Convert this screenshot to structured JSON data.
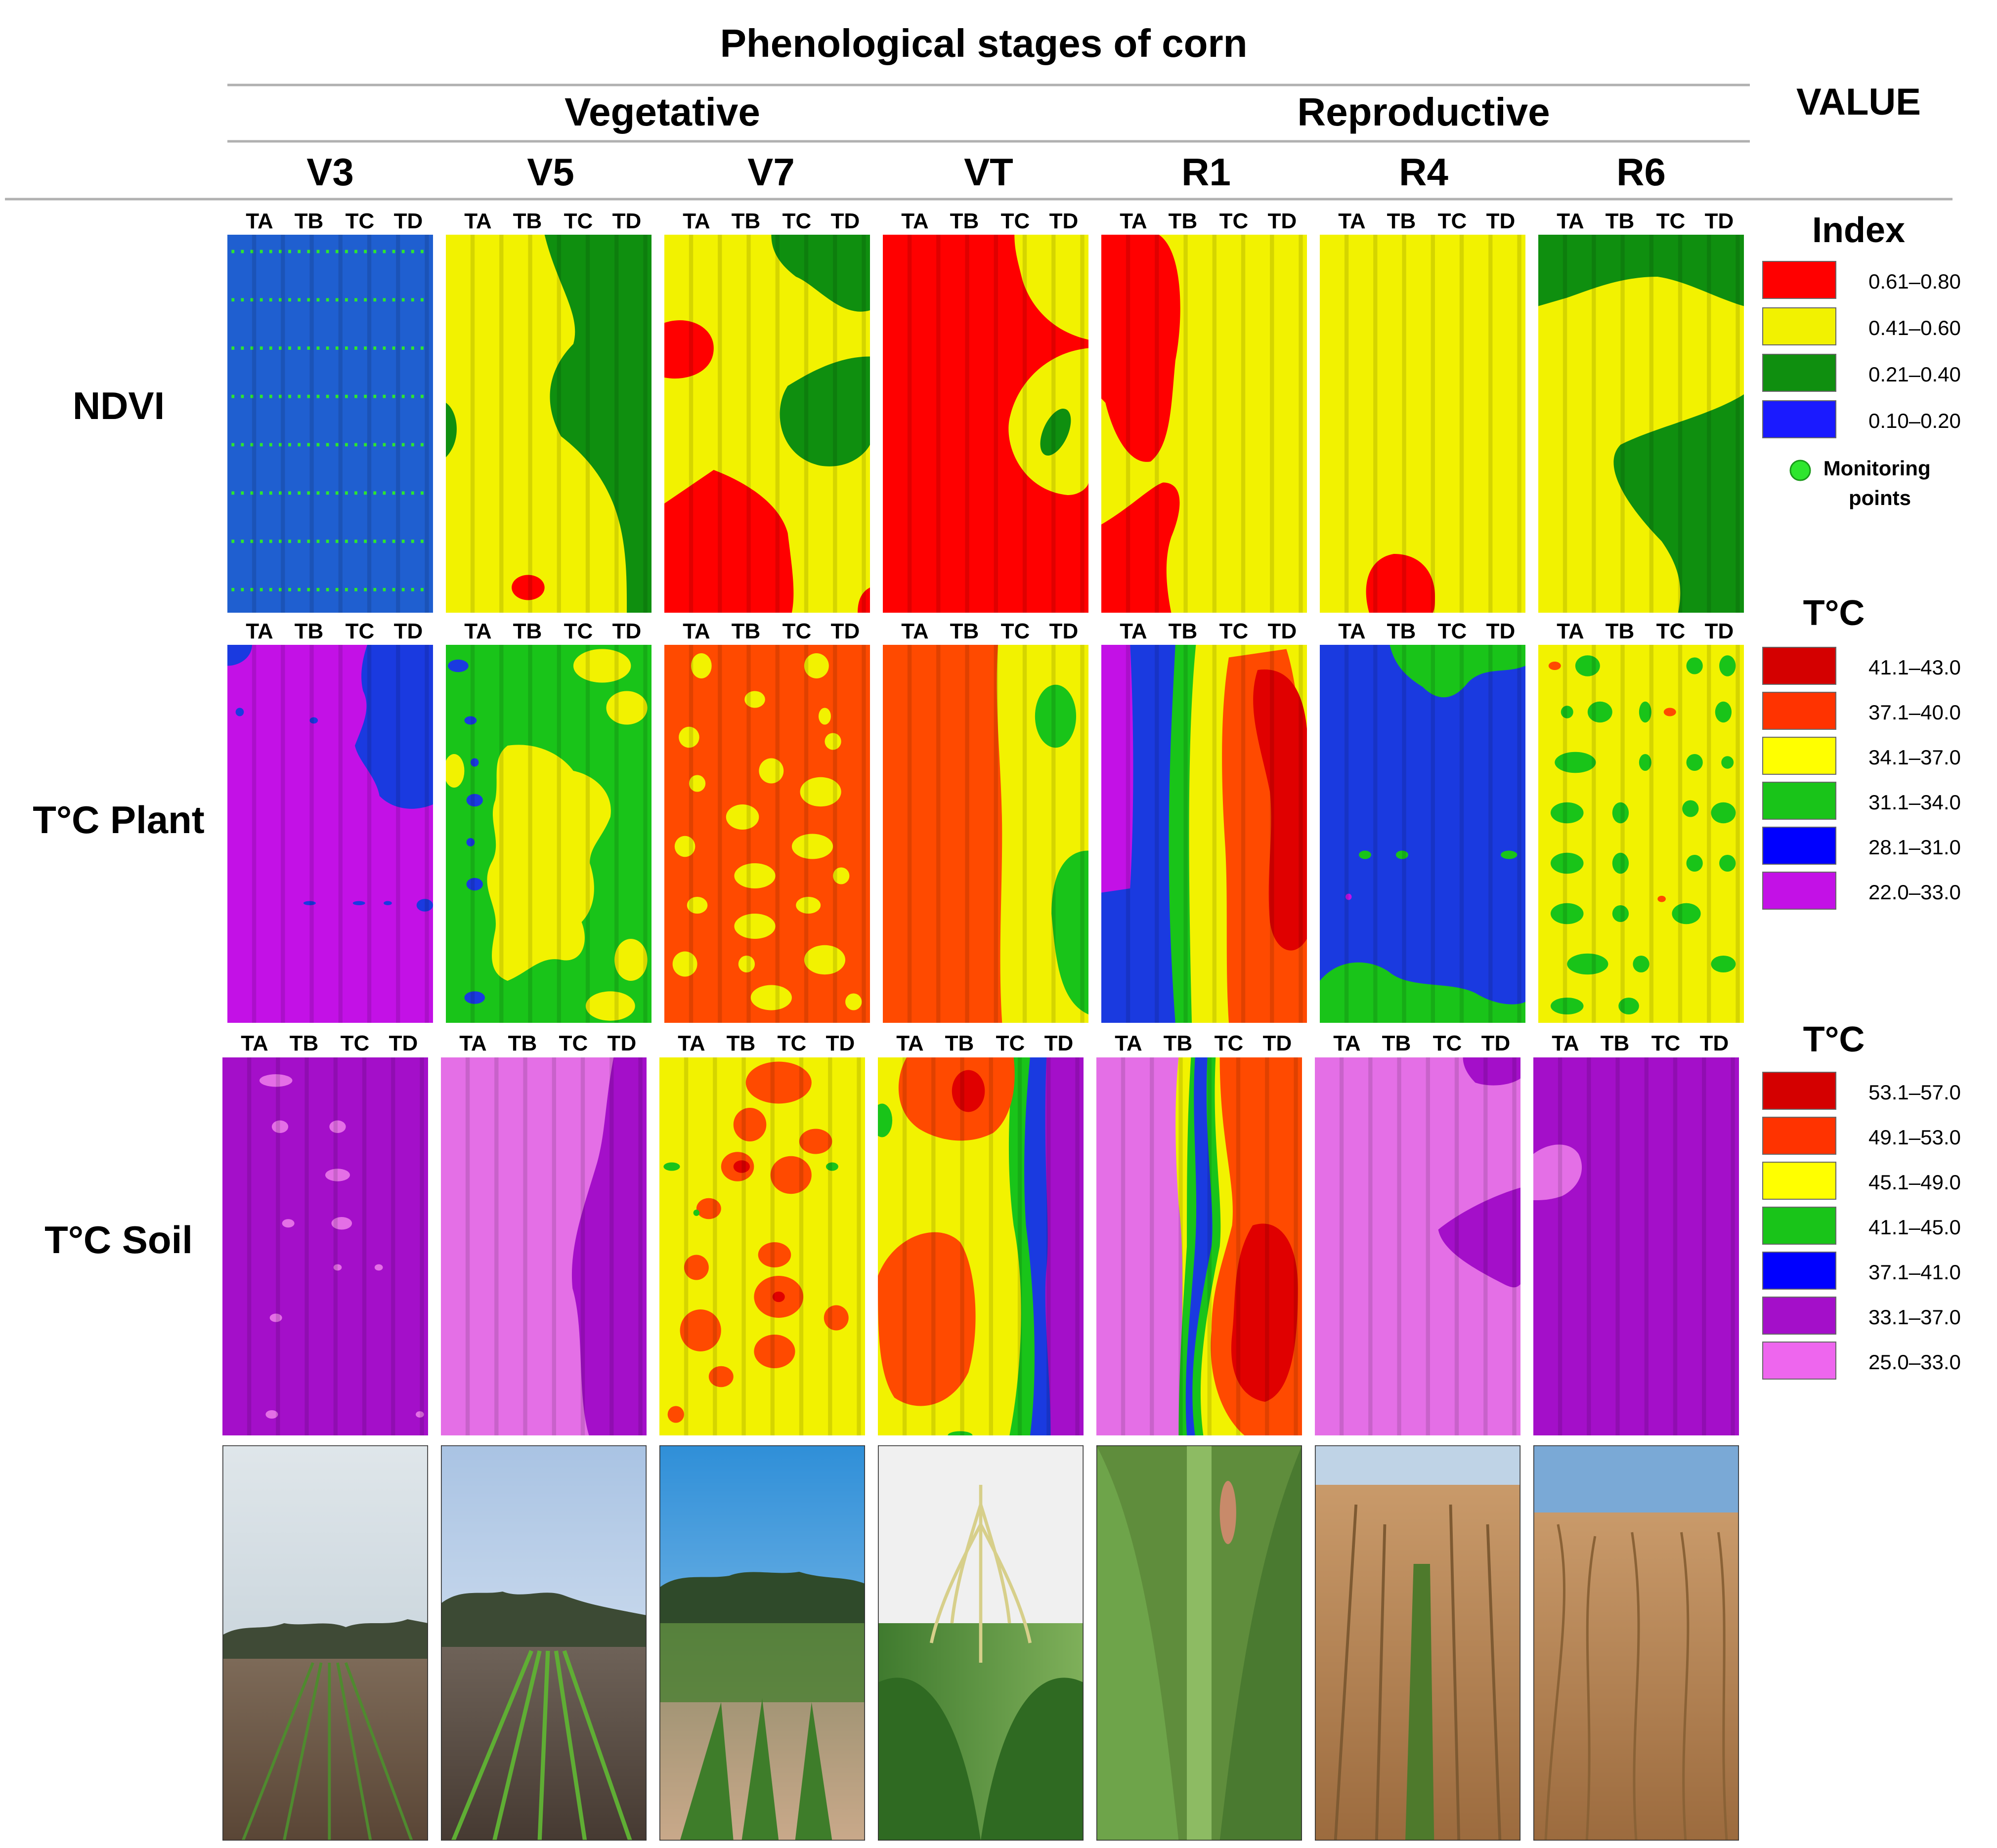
{
  "title": "Phenological stages of corn",
  "groups": [
    "Vegetative",
    "Reproductive"
  ],
  "value_header": "VALUE",
  "stages": [
    "V3",
    "V5",
    "V7",
    "VT",
    "R1",
    "R4",
    "R6"
  ],
  "treatments": [
    "TA",
    "TB",
    "TC",
    "TD"
  ],
  "row_labels": [
    "NDVI",
    "T°C Plant",
    "T°C Soil"
  ],
  "colors": {
    "red": "#ff0000",
    "darkred": "#e00000",
    "orange": "#ff4a00",
    "yellow": "#f2f200",
    "green": "#0f8f0f",
    "lime": "#19c419",
    "blue": "#1a3ae0",
    "ndviblue": "#1f5fd0",
    "violet": "#c311e6",
    "purple": "#a40fc9",
    "pink": "#e46fe6",
    "pinkmark": "#cf5ad3",
    "dot": "#2ee62e"
  },
  "legends": [
    {
      "title": "Index",
      "items": [
        {
          "label": "0.61–0.80",
          "color": "#ff0000"
        },
        {
          "label": "0.41–0.60",
          "color": "#f2f200"
        },
        {
          "label": "0.21–0.40",
          "color": "#0f8f0f"
        },
        {
          "label": "0.10–0.20",
          "color": "#1a1aff"
        }
      ],
      "extra": "Monitoring points"
    },
    {
      "title": "T°C",
      "items": [
        {
          "label": "41.1–43.0",
          "color": "#d40000"
        },
        {
          "label": "37.1–40.0",
          "color": "#ff3300"
        },
        {
          "label": "34.1–37.0",
          "color": "#ffff00"
        },
        {
          "label": "31.1–34.0",
          "color": "#19c419"
        },
        {
          "label": "28.1–31.0",
          "color": "#0000ff"
        },
        {
          "label": "22.0–33.0",
          "color": "#c311e6"
        }
      ]
    },
    {
      "title": "T°C",
      "items": [
        {
          "label": "53.1–57.0",
          "color": "#d40000"
        },
        {
          "label": "49.1–53.0",
          "color": "#ff3300"
        },
        {
          "label": "45.1–49.0",
          "color": "#ffff00"
        },
        {
          "label": "41.1–45.0",
          "color": "#19c419"
        },
        {
          "label": "37.1–41.0",
          "color": "#0000ff"
        },
        {
          "label": "33.1–37.0",
          "color": "#a40fc9"
        },
        {
          "label": "25.0–33.0",
          "color": "#ee66ee"
        }
      ]
    }
  ]
}
